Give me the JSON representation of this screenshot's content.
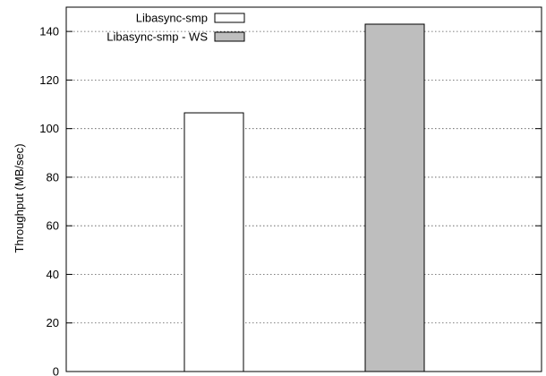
{
  "chart_data": {
    "type": "bar",
    "xlabel": "",
    "ylabel": "Throughput (MB/sec)",
    "ylim": [
      0,
      150
    ],
    "yticks": [
      0,
      20,
      40,
      60,
      80,
      100,
      120,
      140
    ],
    "grid": true,
    "legend_position": "top-left",
    "series": [
      {
        "name": "Libasync-smp",
        "value": 106.5,
        "color": "#ffffff"
      },
      {
        "name": "Libasync-smp - WS",
        "value": 143,
        "color": "#bebebe"
      }
    ]
  }
}
